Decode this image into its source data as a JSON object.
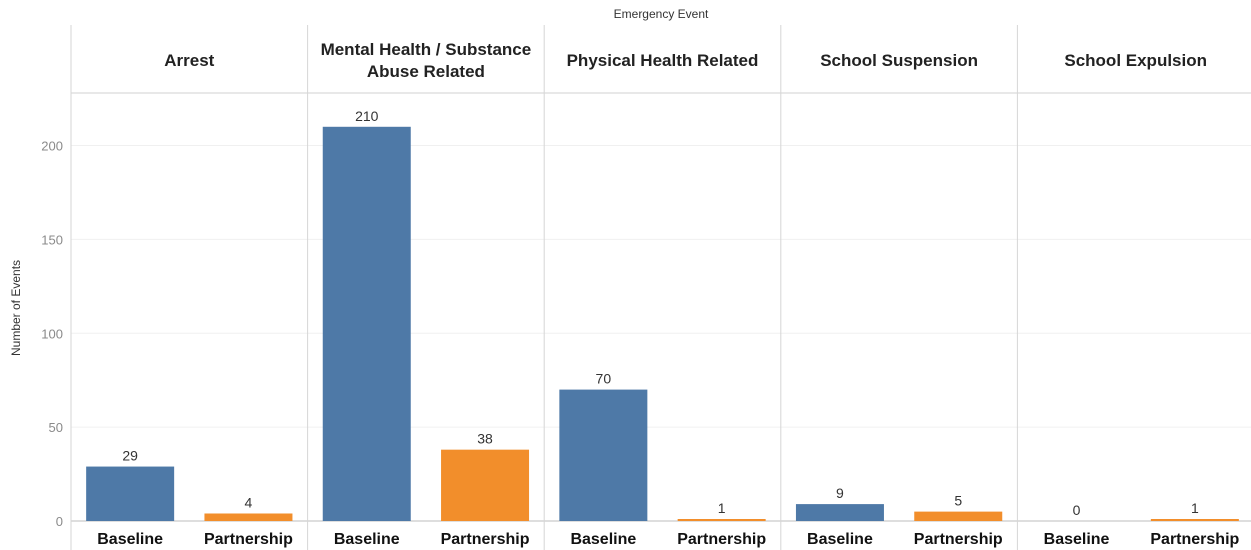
{
  "chart_data": {
    "type": "bar",
    "title": "Emergency Event",
    "ylabel": "Number of Events",
    "ylim": [
      0,
      228
    ],
    "yticks": [
      0,
      50,
      100,
      150,
      200
    ],
    "grid": true,
    "colors": {
      "Baseline": "#4e79a7",
      "Partnership": "#f28e2b"
    },
    "categories": [
      "Baseline",
      "Partnership"
    ],
    "panels": [
      {
        "header": [
          "Arrest"
        ],
        "values": [
          29,
          4
        ]
      },
      {
        "header": [
          "Mental Health / Substance",
          "Abuse Related"
        ],
        "values": [
          210,
          38
        ]
      },
      {
        "header": [
          "Physical Health Related"
        ],
        "values": [
          70,
          1
        ]
      },
      {
        "header": [
          "School Suspension"
        ],
        "values": [
          9,
          5
        ]
      },
      {
        "header": [
          "School Expulsion"
        ],
        "values": [
          0,
          1
        ]
      }
    ]
  }
}
